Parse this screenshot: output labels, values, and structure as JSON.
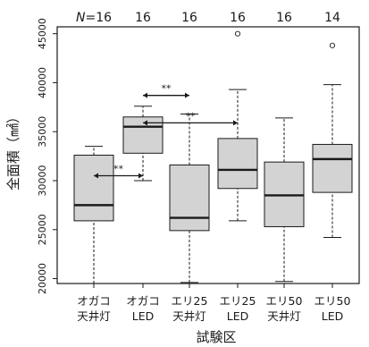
{
  "chart_data": {
    "type": "box",
    "ylabel": "全面積（㎟）",
    "xlabel": "試験区",
    "n_prefix": "N=",
    "ylim": [
      19500,
      45700
    ],
    "yticks": [
      20000,
      25000,
      30000,
      35000,
      40000,
      45000
    ],
    "groups": [
      {
        "label": [
          "オガコ",
          "天井灯"
        ],
        "n": 16,
        "min": 19500,
        "q1": 25900,
        "median": 27500,
        "q3": 32600,
        "max": 33500,
        "outliers": []
      },
      {
        "label": [
          "オガコ",
          "LED"
        ],
        "n": 16,
        "min": 30000,
        "q1": 32800,
        "median": 35500,
        "q3": 36500,
        "max": 37600,
        "outliers": []
      },
      {
        "label": [
          "エリ25",
          "天井灯"
        ],
        "n": 16,
        "min": 19600,
        "q1": 24900,
        "median": 26200,
        "q3": 31600,
        "max": 36800,
        "outliers": []
      },
      {
        "label": [
          "エリ25",
          "LED"
        ],
        "n": 16,
        "min": 25900,
        "q1": 29200,
        "median": 31100,
        "q3": 34300,
        "max": 39300,
        "outliers": [
          45000
        ]
      },
      {
        "label": [
          "エリ50",
          "天井灯"
        ],
        "n": 16,
        "min": 19700,
        "q1": 25300,
        "median": 28500,
        "q3": 31900,
        "max": 36400,
        "outliers": []
      },
      {
        "label": [
          "エリ50",
          "LED"
        ],
        "n": 14,
        "min": 24200,
        "q1": 28800,
        "median": 32200,
        "q3": 33700,
        "max": 39800,
        "outliers": [
          43800
        ]
      }
    ],
    "significance": [
      {
        "from": 0,
        "to": 1,
        "y": 30500,
        "label": "**"
      },
      {
        "from": 1,
        "to": 2,
        "y": 38700,
        "label": "**"
      },
      {
        "from": 1,
        "to": 3,
        "y": 35900,
        "label": "**"
      }
    ],
    "colors": {
      "box_fill": "#d3d3d3",
      "stroke": "#1a1a1a"
    }
  }
}
